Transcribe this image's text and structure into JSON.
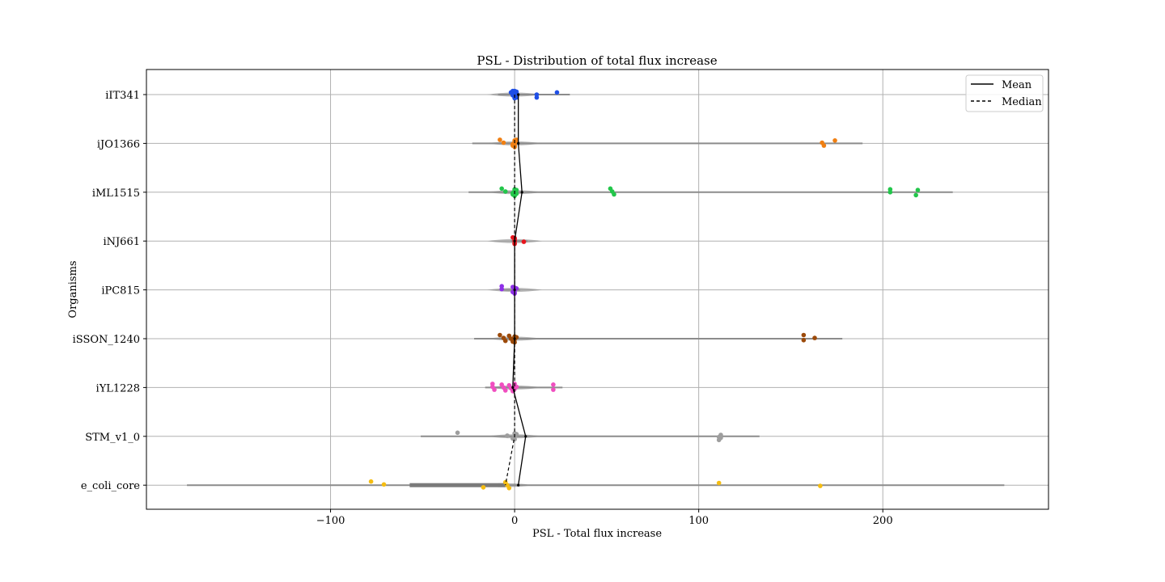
{
  "chart_data": {
    "type": "violin-strip",
    "title": "PSL - Distribution of total flux increase",
    "xlabel": "PSL - Total flux increase",
    "ylabel": "Organisms",
    "xlim": [
      -200,
      290
    ],
    "xticks": [
      -100,
      0,
      100,
      200
    ],
    "xtick_labels": [
      "−100",
      "0",
      "100",
      "200"
    ],
    "grid": true,
    "legend": {
      "placement": "top-right",
      "entries": [
        {
          "label": "Mean",
          "style": "solid"
        },
        {
          "label": "Median",
          "style": "dashed"
        }
      ]
    },
    "categories": [
      "iIT341",
      "iJO1366",
      "iML1515",
      "iNJ661",
      "iPC815",
      "iSSON_1240",
      "iYL1228",
      "STM_v1_0",
      "e_coli_core"
    ],
    "series": [
      {
        "category": "iIT341",
        "color": "#1f4fe6",
        "violin_range": [
          -9,
          30
        ],
        "mean": 2,
        "median": 0,
        "points": [
          -1,
          -1,
          0,
          0,
          0,
          1,
          -2,
          -1,
          0,
          1,
          0,
          0,
          -1,
          0,
          1,
          12,
          12,
          23
        ]
      },
      {
        "category": "iJO1366",
        "color": "#f07f12",
        "violin_range": [
          -23,
          189
        ],
        "mean": 2,
        "median": 0,
        "points": [
          -8,
          -6,
          -1,
          0,
          0,
          0,
          1,
          -1,
          0,
          0,
          0,
          1,
          167,
          168,
          174
        ]
      },
      {
        "category": "iML1515",
        "color": "#22c64a",
        "violin_range": [
          -25,
          238
        ],
        "mean": 4,
        "median": 0,
        "points": [
          -7,
          -5,
          -1,
          0,
          0,
          0,
          1,
          -1,
          0,
          0,
          1,
          52,
          53,
          54,
          204,
          204,
          218,
          219
        ]
      },
      {
        "category": "iNJ661",
        "color": "#e8141c",
        "violin_range": [
          -2,
          7
        ],
        "mean": 0,
        "median": 0,
        "points": [
          -1,
          0,
          0,
          0,
          0,
          0,
          0,
          5
        ]
      },
      {
        "category": "iPC815",
        "color": "#8e2fe8",
        "violin_range": [
          -7,
          3
        ],
        "mean": 0,
        "median": 0,
        "points": [
          -7,
          -7,
          -1,
          -1,
          0,
          0,
          0,
          0,
          0,
          1
        ]
      },
      {
        "category": "iSSON_1240",
        "color": "#9c4a0a",
        "violin_range": [
          -22,
          178
        ],
        "mean": 0,
        "median": 0,
        "points": [
          -8,
          -6,
          -5,
          -3,
          -2,
          -1,
          0,
          0,
          0,
          1,
          157,
          157,
          163
        ]
      },
      {
        "category": "iYL1228",
        "color": "#f04ec0",
        "violin_range": [
          -16,
          26
        ],
        "mean": -1,
        "median": 0,
        "points": [
          -12,
          -12,
          -11,
          -7,
          -6,
          -5,
          -3,
          -2,
          -1,
          0,
          0,
          0,
          1,
          21,
          21
        ]
      },
      {
        "category": "STM_v1_0",
        "color": "#9e9e9e",
        "violin_range": [
          -51,
          133
        ],
        "mean": 6,
        "median": 0,
        "points": [
          -31,
          -4,
          -1,
          0,
          0,
          0,
          1,
          111,
          111,
          112,
          112
        ]
      },
      {
        "category": "e_coli_core",
        "color": "#f5bd12",
        "violin_range": [
          -178,
          266
        ],
        "mean": 2,
        "median": -5,
        "points": [
          -78,
          -71,
          -17,
          -5,
          -4,
          -3,
          111,
          166
        ]
      }
    ]
  }
}
